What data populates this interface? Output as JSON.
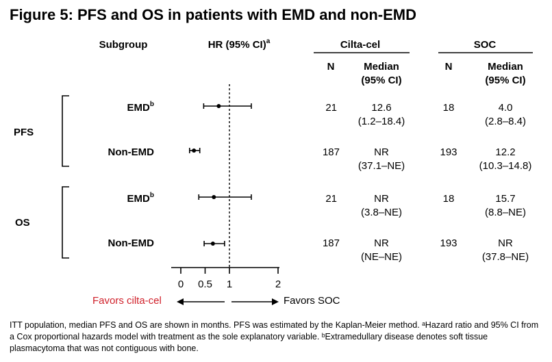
{
  "title": "Figure 5: PFS and OS in patients with EMD and non-EMD",
  "headers": {
    "subgroup": "Subgroup",
    "hr": "HR (95% CI)",
    "hr_sup": "a",
    "cilta": "Cilta-cel",
    "soc": "SOC",
    "n": "N",
    "median": "Median",
    "ci": "(95% CI)"
  },
  "groups": [
    {
      "name": "PFS",
      "rows": [
        {
          "label": "EMD",
          "label_sup": "b",
          "cilta_n": "21",
          "cilta_median": "12.6",
          "cilta_ci": "(1.2–18.4)",
          "soc_n": "18",
          "soc_median": "4.0",
          "soc_ci": "(2.8–8.4)"
        },
        {
          "label": "Non-EMD",
          "label_sup": "",
          "cilta_n": "187",
          "cilta_median": "NR",
          "cilta_ci": "(37.1–NE)",
          "soc_n": "193",
          "soc_median": "12.2",
          "soc_ci": "(10.3–14.8)"
        }
      ]
    },
    {
      "name": "OS",
      "rows": [
        {
          "label": "EMD",
          "label_sup": "b",
          "cilta_n": "21",
          "cilta_median": "NR",
          "cilta_ci": "(3.8–NE)",
          "soc_n": "18",
          "soc_median": "15.7",
          "soc_ci": "(8.8–NE)"
        },
        {
          "label": "Non-EMD",
          "label_sup": "",
          "cilta_n": "187",
          "cilta_median": "NR",
          "cilta_ci": "(NE–NE)",
          "soc_n": "193",
          "soc_median": "NR",
          "soc_ci": "(37.8–NE)"
        }
      ]
    }
  ],
  "favors_left": "Favors cilta-cel",
  "favors_right": "Favors SOC",
  "footnote": "ITT population, median PFS and OS are shown in months. PFS was estimated by the Kaplan-Meier method. ᵃHazard ratio and 95% CI from a Cox proportional hazards model with treatment as the sole explanatory variable. ᵇExtramedullary disease denotes soft tissue plasmacytoma that was not contiguous with bone.",
  "colors": {
    "favors_left": "#d0202a",
    "text": "#000000"
  },
  "chart_data": {
    "type": "forest",
    "xlim": [
      0,
      2
    ],
    "ticks": [
      0,
      0.5,
      1,
      2
    ],
    "tick_labels": [
      "0",
      "0.5",
      "1",
      "2"
    ],
    "reference_line": 1,
    "rows": [
      {
        "group": "PFS",
        "subgroup": "EMD",
        "hr": 0.78,
        "lo": 0.47,
        "hi": 1.45
      },
      {
        "group": "PFS",
        "subgroup": "Non-EMD",
        "hr": 0.27,
        "lo": 0.18,
        "hi": 0.39
      },
      {
        "group": "OS",
        "subgroup": "EMD",
        "hr": 0.68,
        "lo": 0.37,
        "hi": 1.45
      },
      {
        "group": "OS",
        "subgroup": "Non-EMD",
        "hr": 0.66,
        "lo": 0.48,
        "hi": 0.9
      }
    ]
  }
}
